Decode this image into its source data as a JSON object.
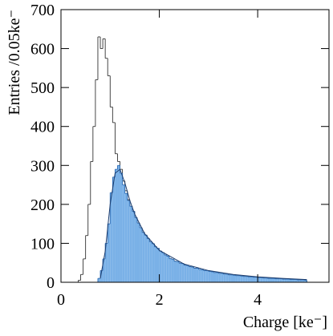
{
  "chart_data": {
    "type": "histogram",
    "xlabel": "Charge [ke⁻]",
    "ylabel": "Entries /0.05ke⁻",
    "bins": [
      0.3,
      0.35,
      0.4,
      0.45,
      0.5,
      0.55,
      0.6,
      0.65,
      0.7,
      0.75,
      0.8,
      0.85,
      0.9,
      0.95,
      1.0,
      1.05,
      1.1,
      1.15,
      1.2,
      1.25,
      1.3,
      1.35,
      1.4,
      1.45,
      1.5,
      1.55,
      1.6,
      1.65,
      1.7,
      1.75,
      1.8,
      1.85,
      1.9,
      1.95,
      2.0,
      2.05,
      2.1,
      2.15,
      2.2,
      2.25,
      2.3,
      2.35,
      2.4,
      2.45,
      2.5,
      2.55,
      2.6,
      2.65,
      2.7,
      2.75,
      2.8,
      2.85,
      2.9,
      2.95,
      3.0,
      3.05,
      3.1,
      3.15,
      3.2,
      3.25,
      3.3,
      3.35,
      3.4,
      3.45,
      3.5,
      3.55,
      3.6,
      3.65,
      3.7,
      3.75,
      3.8,
      3.85,
      3.9,
      3.95,
      4.0,
      4.05,
      4.1,
      4.15,
      4.2,
      4.25,
      4.3,
      4.35,
      4.4,
      4.45,
      4.5,
      4.55,
      4.6,
      4.65,
      4.7,
      4.75,
      4.8,
      4.85,
      4.9,
      4.95,
      5.0
    ],
    "series": [
      {
        "color": "#333333",
        "fill": false,
        "values": [
          0,
          5,
          20,
          60,
          120,
          200,
          310,
          400,
          520,
          630,
          600,
          625,
          575,
          530,
          450,
          410,
          330,
          310,
          290,
          260,
          235,
          212,
          195,
          182,
          166,
          152,
          140,
          128,
          121,
          112,
          104,
          99,
          91,
          87,
          80,
          76,
          70,
          67,
          61,
          59,
          54,
          53,
          49,
          48,
          44,
          43,
          40,
          39,
          36,
          36,
          33,
          32,
          30,
          30,
          28,
          27,
          25,
          25,
          23,
          23,
          21,
          21,
          19,
          19,
          18,
          17,
          17,
          16,
          15,
          15,
          14,
          14,
          13,
          13,
          12,
          12,
          11,
          11,
          10,
          10,
          10,
          9,
          9,
          9,
          8,
          8,
          8,
          7,
          7,
          7,
          6,
          6,
          6,
          5
        ]
      },
      {
        "color": "#2f6db5",
        "fill": "#7ab1e7",
        "values": [
          0,
          0,
          0,
          0,
          0,
          0,
          0,
          0,
          0,
          10,
          30,
          60,
          100,
          150,
          230,
          270,
          290,
          300,
          280,
          250,
          228,
          210,
          195,
          182,
          166,
          152,
          140,
          128,
          121,
          112,
          104,
          99,
          91,
          87,
          80,
          76,
          70,
          67,
          61,
          59,
          54,
          53,
          49,
          48,
          44,
          43,
          40,
          39,
          36,
          36,
          33,
          32,
          30,
          30,
          28,
          27,
          25,
          25,
          23,
          23,
          21,
          21,
          19,
          19,
          18,
          17,
          17,
          16,
          15,
          15,
          14,
          14,
          13,
          13,
          12,
          12,
          11,
          11,
          10,
          10,
          10,
          9,
          9,
          9,
          8,
          8,
          8,
          7,
          7,
          7,
          6,
          6,
          6,
          5
        ]
      }
    ],
    "fit": {
      "color": "#1c3d6e",
      "x": [
        0.8,
        0.9,
        1.0,
        1.1,
        1.2,
        1.3,
        1.4,
        1.5,
        1.7,
        2.0,
        2.5,
        3.0,
        3.5,
        4.0,
        4.5,
        5.0
      ],
      "values": [
        10,
        80,
        200,
        280,
        290,
        255,
        210,
        175,
        125,
        82,
        47,
        30,
        20,
        14,
        10,
        7
      ]
    },
    "xlim": [
      0,
      5.45
    ],
    "ylim": [
      0,
      700
    ],
    "xticks": [
      0,
      2,
      4
    ],
    "yticks": [
      0,
      100,
      200,
      300,
      400,
      500,
      600,
      700
    ]
  }
}
